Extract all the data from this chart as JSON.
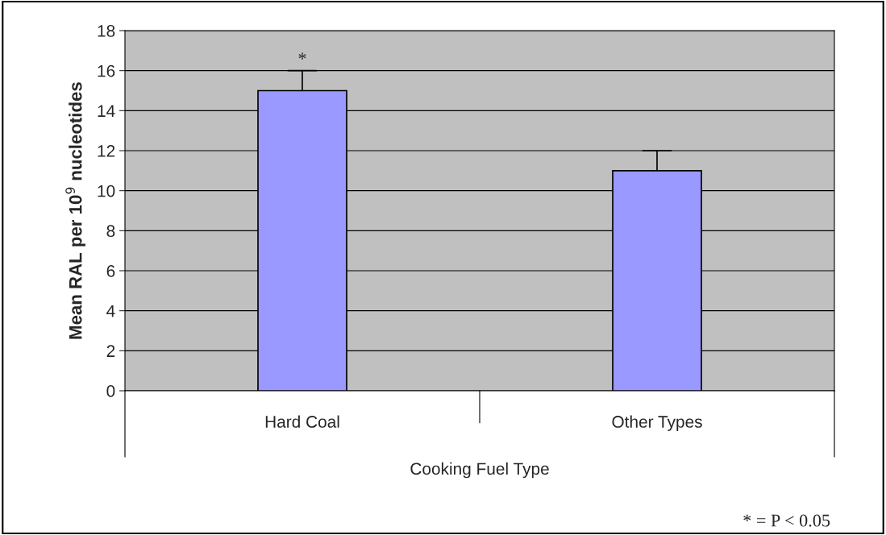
{
  "chart_data": {
    "type": "bar",
    "categories": [
      "Hard Coal",
      "Other Types"
    ],
    "values": [
      15,
      11
    ],
    "errors": [
      [
        15,
        16
      ],
      [
        11,
        12
      ]
    ],
    "color": "#9999ff",
    "ylabel": "Mean RAL per 10$^{9}$ nucleotides",
    "xlabel": "Cooking Fuel Type",
    "ylim": [
      0,
      18
    ],
    "yticks": [
      0,
      2,
      4,
      6,
      8,
      10,
      12,
      14,
      16,
      18
    ],
    "grid": "y",
    "annotations": [
      {
        "text": "*",
        "x": "Hard Coal",
        "y": 16
      },
      "* = P < 0.05"
    ]
  }
}
